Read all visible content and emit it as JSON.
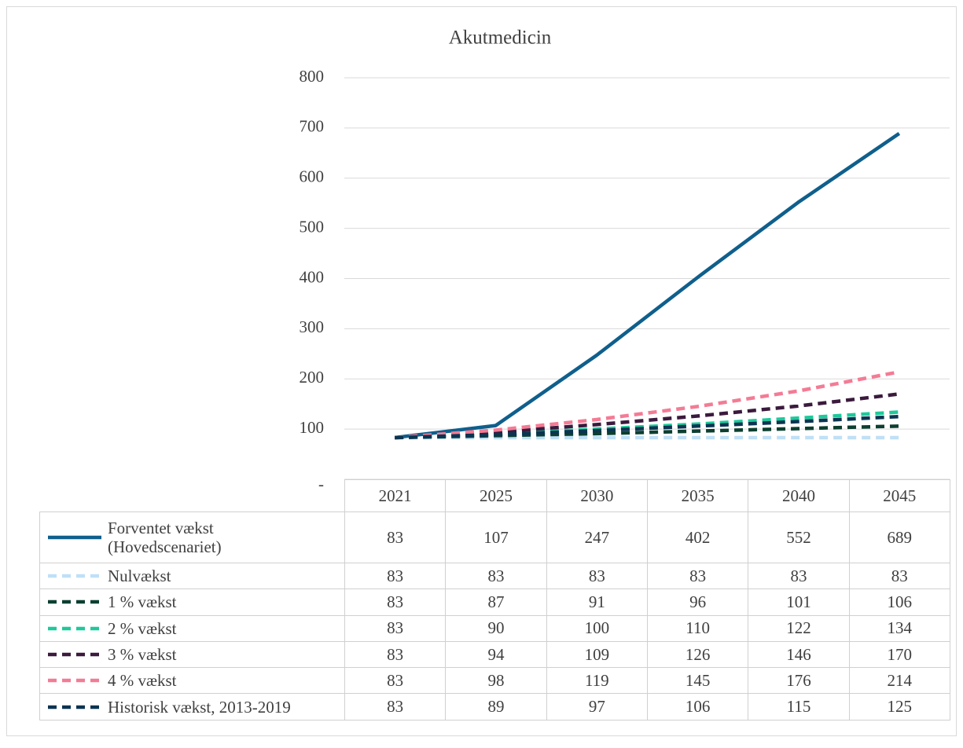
{
  "chart_data": {
    "type": "line",
    "title": "Akutmedicin",
    "categories": [
      "2021",
      "2025",
      "2030",
      "2035",
      "2040",
      "2045"
    ],
    "ylim": [
      0,
      800
    ],
    "yticks": [
      {
        "value": 0,
        "label": "-"
      },
      100,
      200,
      300,
      400,
      500,
      600,
      700,
      800
    ],
    "grid": true,
    "series": [
      {
        "name": "Forventet vækst (Hovedscenariet)",
        "color": "#0f5f8c",
        "dashed": false,
        "values": [
          83,
          107,
          247,
          402,
          552,
          689
        ]
      },
      {
        "name": "Nulvækst",
        "color": "#bfe0f6",
        "dashed": true,
        "values": [
          83,
          83,
          83,
          83,
          83,
          83
        ]
      },
      {
        "name": "1 % vækst",
        "color": "#0c3f30",
        "dashed": true,
        "values": [
          83,
          87,
          91,
          96,
          101,
          106
        ]
      },
      {
        "name": "2 % vækst",
        "color": "#1ec99b",
        "dashed": true,
        "values": [
          83,
          90,
          100,
          110,
          122,
          134
        ]
      },
      {
        "name": "3 % vækst",
        "color": "#3b1a3d",
        "dashed": true,
        "values": [
          83,
          94,
          109,
          126,
          146,
          170
        ]
      },
      {
        "name": "4 % vækst",
        "color": "#f47b95",
        "dashed": true,
        "values": [
          83,
          98,
          119,
          145,
          176,
          214
        ]
      },
      {
        "name": "Historisk vækst, 2013-2019",
        "color": "#0b3451",
        "dashed": true,
        "values": [
          83,
          89,
          97,
          106,
          115,
          125
        ]
      }
    ]
  }
}
